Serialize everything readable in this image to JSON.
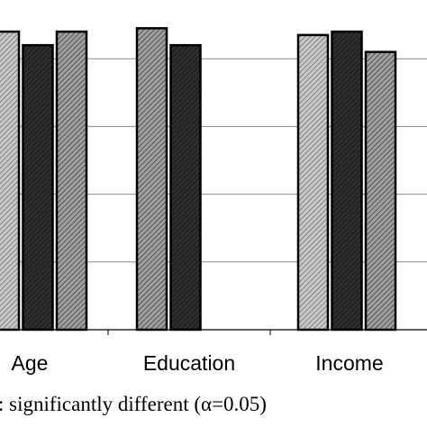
{
  "chart_data": {
    "type": "bar",
    "categories": [
      "Age",
      "Education",
      "Income"
    ],
    "series_styles": [
      "light-hatch",
      "dark-hatch",
      "medium-hatch"
    ],
    "bars": [
      [
        {
          "style": "light-hatch",
          "value": 4.4
        },
        {
          "style": "dark-hatch",
          "value": 4.2
        },
        {
          "style": "medium-hatch",
          "value": 4.4
        }
      ],
      [
        {
          "style": "medium-hatch",
          "value": 4.45
        },
        {
          "style": "dark-hatch",
          "value": 4.2
        }
      ],
      [
        {
          "style": "light-hatch",
          "value": 4.35
        },
        {
          "style": "dark-hatch",
          "value": 4.4
        },
        {
          "style": "medium-hatch",
          "value": 4.1
        }
      ]
    ],
    "ylim": [
      0,
      5
    ],
    "gridlines": [
      1,
      2,
      3,
      4,
      5
    ],
    "grid": true,
    "colors": {
      "light": "#bdbdbd",
      "medium": "#969696",
      "dark": "#2a2a2a",
      "hatch": "#000000"
    }
  },
  "footnote": ": significantly different (α=0.05)"
}
